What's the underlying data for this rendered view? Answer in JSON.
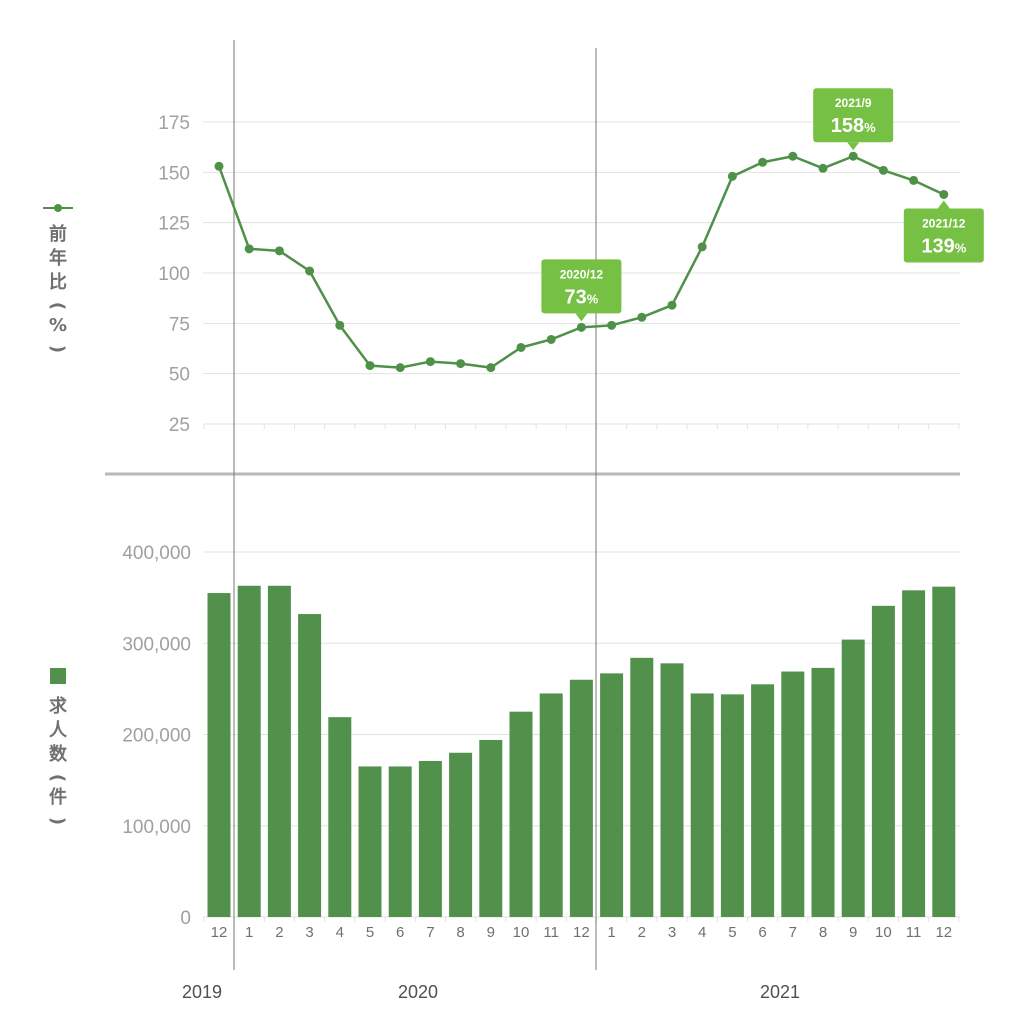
{
  "colors": {
    "line": "#4f9149",
    "bar": "#52914c",
    "callout": "#76c043",
    "grid": "#e3e3e3",
    "divider": "#b9b9b9",
    "yearline": "#777777"
  },
  "chart_data": [
    {
      "type": "line",
      "ylabel_marker": "●",
      "ylabel": [
        "前",
        "年",
        "比",
        "(",
        "%",
        ")"
      ],
      "yticks": [
        25,
        50,
        75,
        100,
        125,
        150,
        175
      ],
      "ylim": [
        25,
        200
      ],
      "x": [
        "2019/12",
        "2020/1",
        "2020/2",
        "2020/3",
        "2020/4",
        "2020/5",
        "2020/6",
        "2020/7",
        "2020/8",
        "2020/9",
        "2020/10",
        "2020/11",
        "2020/12",
        "2021/1",
        "2021/2",
        "2021/3",
        "2021/4",
        "2021/5",
        "2021/6",
        "2021/7",
        "2021/8",
        "2021/9",
        "2021/10",
        "2021/11",
        "2021/12"
      ],
      "values": [
        153,
        112,
        111,
        101,
        74,
        54,
        53,
        56,
        55,
        53,
        63,
        67,
        73,
        74,
        78,
        84,
        113,
        148,
        155,
        158,
        152,
        158,
        151,
        146,
        139
      ],
      "grid": true,
      "annotations": [
        {
          "index": 12,
          "date": "2020/12",
          "value": "73",
          "unit": "%",
          "position": "above"
        },
        {
          "index": 21,
          "date": "2021/9",
          "value": "158",
          "unit": "%",
          "position": "above"
        },
        {
          "index": 24,
          "date": "2021/12",
          "value": "139",
          "unit": "%",
          "position": "below"
        }
      ]
    },
    {
      "type": "bar",
      "ylabel_marker": "■",
      "ylabel": [
        "求",
        "人",
        "数",
        "(",
        "件",
        ")"
      ],
      "yticks": [
        "0",
        "100,000",
        "200,000",
        "300,000",
        "400,000"
      ],
      "ylim": [
        0,
        400000
      ],
      "categories": [
        "12",
        "1",
        "2",
        "3",
        "4",
        "5",
        "6",
        "7",
        "8",
        "9",
        "10",
        "11",
        "12",
        "1",
        "2",
        "3",
        "4",
        "5",
        "6",
        "7",
        "8",
        "9",
        "10",
        "11",
        "12"
      ],
      "values": [
        355000,
        363000,
        363000,
        332000,
        219000,
        165000,
        165000,
        171000,
        180000,
        194000,
        225000,
        245000,
        260000,
        267000,
        284000,
        278000,
        245000,
        244000,
        255000,
        269000,
        273000,
        304000,
        341000,
        358000,
        362000
      ],
      "grid": true
    }
  ],
  "years": [
    "2019",
    "2020",
    "2021"
  ]
}
